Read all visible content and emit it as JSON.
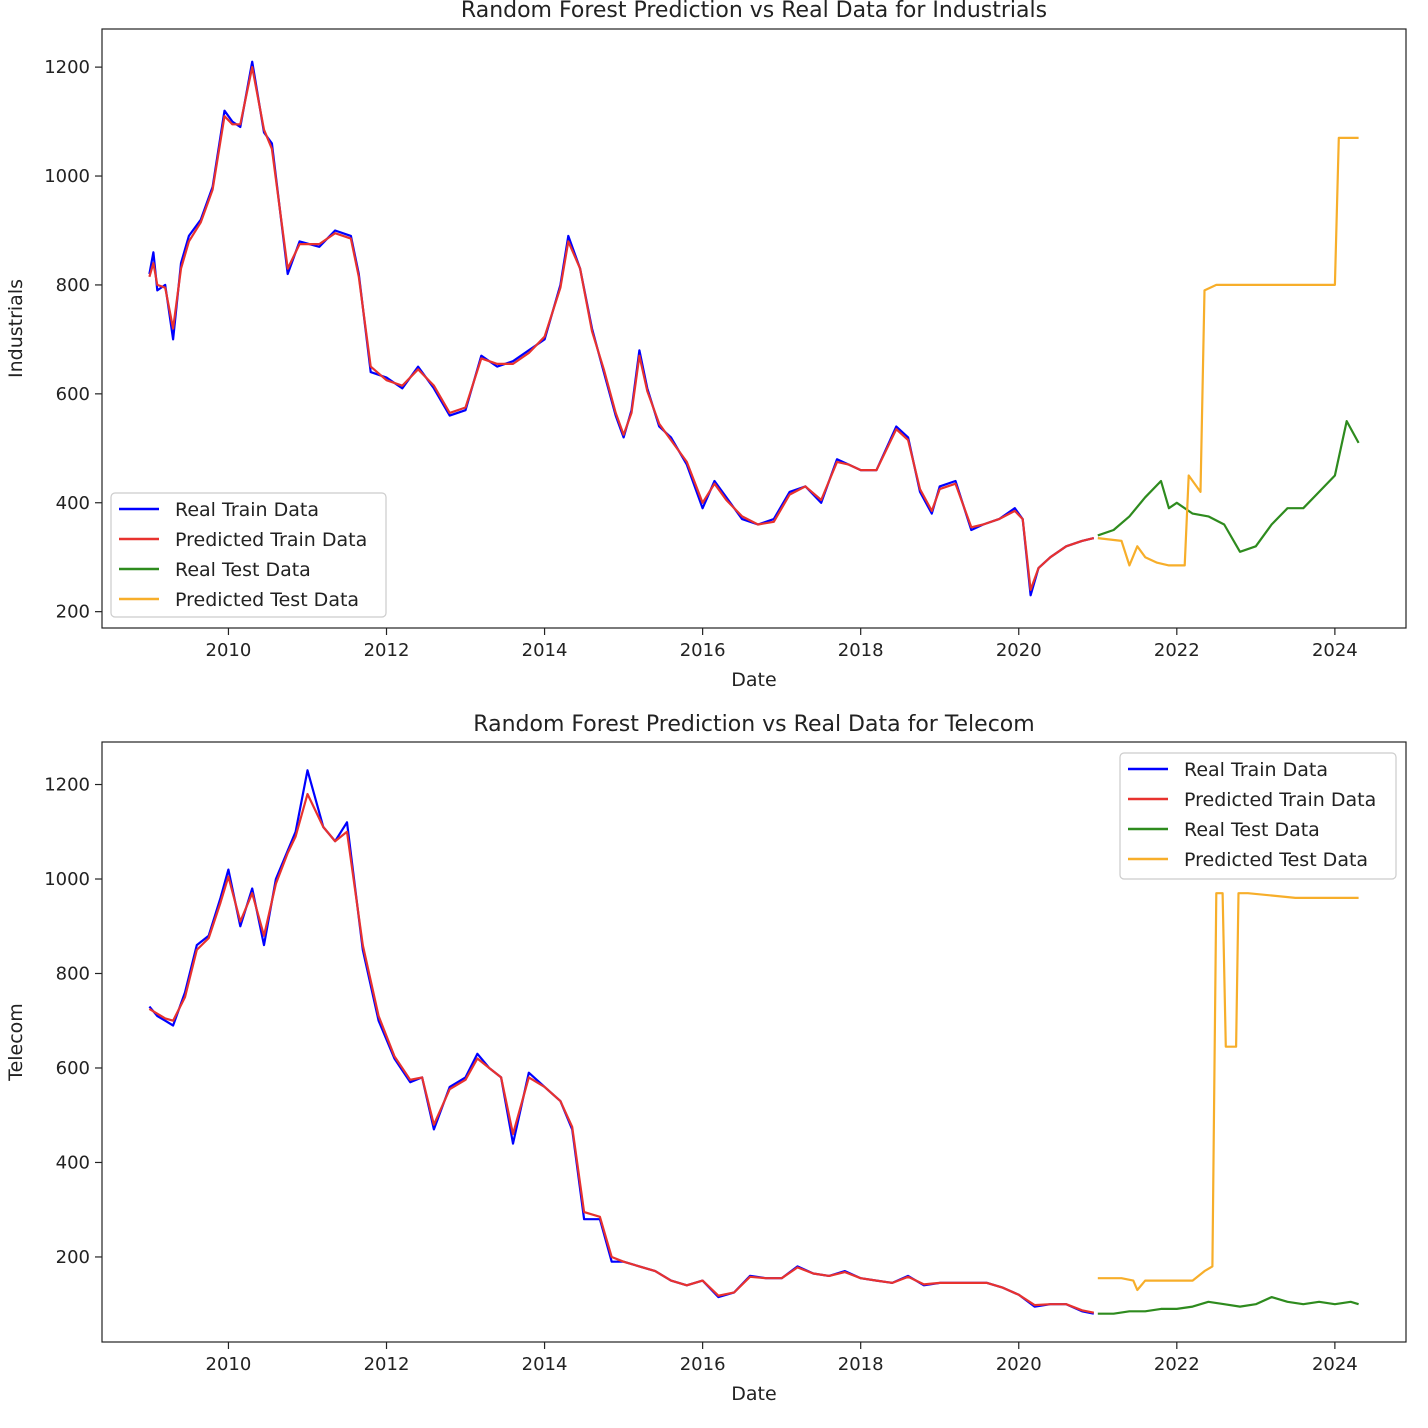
{
  "colors": {
    "real_train": "#0000ff",
    "predicted_train": "#e8322e",
    "real_test": "#2e8b1e",
    "predicted_test": "#f7ae2a",
    "axes": "#222222",
    "background": "#ffffff"
  },
  "chart_data": [
    {
      "type": "line",
      "title": "Random Forest Prediction vs Real Data for Industrials",
      "xlabel": "Date",
      "ylabel": "Industrials",
      "xlim": [
        2008.4,
        2024.9
      ],
      "ylim": [
        170,
        1270
      ],
      "xticks": [
        2010,
        2012,
        2014,
        2016,
        2018,
        2020,
        2022,
        2024
      ],
      "yticks": [
        200,
        400,
        600,
        800,
        1000,
        1200
      ],
      "grid": false,
      "legend": {
        "position": "lower-left",
        "entries": [
          "Real Train Data",
          "Predicted Train Data",
          "Real Test Data",
          "Predicted Test Data"
        ]
      },
      "series": [
        {
          "name": "Real Train Data",
          "color_key": "real_train",
          "x": [
            2009.0,
            2009.05,
            2009.1,
            2009.2,
            2009.3,
            2009.4,
            2009.5,
            2009.65,
            2009.8,
            2009.95,
            2010.05,
            2010.15,
            2010.3,
            2010.45,
            2010.55,
            2010.75,
            2010.9,
            2011.15,
            2011.35,
            2011.55,
            2011.65,
            2011.8,
            2012.0,
            2012.2,
            2012.4,
            2012.6,
            2012.8,
            2013.0,
            2013.2,
            2013.4,
            2013.6,
            2013.8,
            2014.0,
            2014.2,
            2014.3,
            2014.45,
            2014.6,
            2014.75,
            2014.9,
            2015.0,
            2015.1,
            2015.2,
            2015.3,
            2015.45,
            2015.6,
            2015.8,
            2016.0,
            2016.15,
            2016.3,
            2016.5,
            2016.7,
            2016.9,
            2017.1,
            2017.3,
            2017.5,
            2017.7,
            2017.85,
            2018.0,
            2018.2,
            2018.45,
            2018.6,
            2018.75,
            2018.9,
            2019.0,
            2019.2,
            2019.4,
            2019.55,
            2019.75,
            2019.95,
            2020.05,
            2020.15,
            2020.25,
            2020.4,
            2020.6,
            2020.8,
            2020.95
          ],
          "y": [
            820,
            860,
            790,
            800,
            700,
            840,
            890,
            920,
            980,
            1120,
            1100,
            1090,
            1210,
            1080,
            1060,
            820,
            880,
            870,
            900,
            890,
            820,
            640,
            630,
            610,
            650,
            610,
            560,
            570,
            670,
            650,
            660,
            680,
            700,
            800,
            890,
            830,
            720,
            640,
            560,
            520,
            570,
            680,
            610,
            540,
            520,
            470,
            390,
            440,
            410,
            370,
            360,
            370,
            420,
            430,
            400,
            480,
            470,
            460,
            460,
            540,
            520,
            420,
            380,
            430,
            440,
            350,
            360,
            370,
            390,
            370,
            230,
            280,
            300,
            320,
            330,
            335
          ]
        },
        {
          "name": "Predicted Train Data",
          "color_key": "predicted_train",
          "x": [
            2009.0,
            2009.05,
            2009.1,
            2009.2,
            2009.3,
            2009.4,
            2009.5,
            2009.65,
            2009.8,
            2009.95,
            2010.05,
            2010.15,
            2010.3,
            2010.45,
            2010.55,
            2010.75,
            2010.9,
            2011.15,
            2011.35,
            2011.55,
            2011.65,
            2011.8,
            2012.0,
            2012.2,
            2012.4,
            2012.6,
            2012.8,
            2013.0,
            2013.2,
            2013.4,
            2013.6,
            2013.8,
            2014.0,
            2014.2,
            2014.3,
            2014.45,
            2014.6,
            2014.75,
            2014.9,
            2015.0,
            2015.1,
            2015.2,
            2015.3,
            2015.45,
            2015.6,
            2015.8,
            2016.0,
            2016.15,
            2016.3,
            2016.5,
            2016.7,
            2016.9,
            2017.1,
            2017.3,
            2017.5,
            2017.7,
            2017.85,
            2018.0,
            2018.2,
            2018.45,
            2018.6,
            2018.75,
            2018.9,
            2019.0,
            2019.2,
            2019.4,
            2019.55,
            2019.75,
            2019.95,
            2020.05,
            2020.15,
            2020.25,
            2020.4,
            2020.6,
            2020.8,
            2020.95
          ],
          "y": [
            815,
            840,
            800,
            795,
            720,
            830,
            880,
            915,
            975,
            1110,
            1095,
            1095,
            1200,
            1085,
            1050,
            830,
            875,
            875,
            895,
            885,
            815,
            650,
            625,
            615,
            645,
            615,
            565,
            575,
            665,
            655,
            655,
            675,
            705,
            795,
            880,
            830,
            715,
            645,
            565,
            525,
            565,
            670,
            605,
            545,
            515,
            475,
            400,
            435,
            405,
            375,
            360,
            365,
            415,
            430,
            405,
            475,
            470,
            460,
            460,
            535,
            515,
            425,
            385,
            425,
            435,
            355,
            360,
            370,
            385,
            370,
            240,
            280,
            300,
            320,
            330,
            335
          ]
        },
        {
          "name": "Real Test Data",
          "color_key": "real_test",
          "x": [
            2021.0,
            2021.2,
            2021.4,
            2021.6,
            2021.8,
            2021.9,
            2022.0,
            2022.2,
            2022.4,
            2022.6,
            2022.8,
            2023.0,
            2023.2,
            2023.4,
            2023.6,
            2023.8,
            2024.0,
            2024.15,
            2024.3
          ],
          "y": [
            340,
            350,
            375,
            410,
            440,
            390,
            400,
            380,
            375,
            360,
            310,
            320,
            360,
            390,
            390,
            420,
            450,
            550,
            510
          ]
        },
        {
          "name": "Predicted Test Data",
          "color_key": "predicted_test",
          "x": [
            2021.0,
            2021.3,
            2021.4,
            2021.5,
            2021.6,
            2021.75,
            2021.9,
            2022.1,
            2022.15,
            2022.3,
            2022.35,
            2022.5,
            2022.8,
            2023.0,
            2023.5,
            2024.0,
            2024.05,
            2024.3
          ],
          "y": [
            335,
            330,
            285,
            320,
            300,
            290,
            285,
            285,
            450,
            420,
            790,
            800,
            800,
            800,
            800,
            800,
            1070,
            1070
          ]
        }
      ]
    },
    {
      "type": "line",
      "title": "Random Forest Prediction vs Real Data for Telecom",
      "xlabel": "Date",
      "ylabel": "Telecom",
      "xlim": [
        2008.4,
        2024.9
      ],
      "ylim": [
        20,
        1290
      ],
      "xticks": [
        2010,
        2012,
        2014,
        2016,
        2018,
        2020,
        2022,
        2024
      ],
      "yticks": [
        200,
        400,
        600,
        800,
        1000,
        1200
      ],
      "grid": false,
      "legend": {
        "position": "upper-right",
        "entries": [
          "Real Train Data",
          "Predicted Train Data",
          "Real Test Data",
          "Predicted Test Data"
        ]
      },
      "series": [
        {
          "name": "Real Train Data",
          "color_key": "real_train",
          "x": [
            2009.0,
            2009.1,
            2009.2,
            2009.3,
            2009.45,
            2009.6,
            2009.75,
            2009.9,
            2010.0,
            2010.15,
            2010.3,
            2010.45,
            2010.6,
            2010.75,
            2010.85,
            2011.0,
            2011.2,
            2011.35,
            2011.5,
            2011.7,
            2011.9,
            2012.1,
            2012.3,
            2012.45,
            2012.6,
            2012.8,
            2013.0,
            2013.15,
            2013.3,
            2013.45,
            2013.6,
            2013.8,
            2014.0,
            2014.2,
            2014.35,
            2014.5,
            2014.7,
            2014.85,
            2015.0,
            2015.2,
            2015.4,
            2015.6,
            2015.8,
            2016.0,
            2016.2,
            2016.4,
            2016.6,
            2016.8,
            2017.0,
            2017.2,
            2017.4,
            2017.6,
            2017.8,
            2018.0,
            2018.2,
            2018.4,
            2018.6,
            2018.8,
            2019.0,
            2019.2,
            2019.4,
            2019.6,
            2019.8,
            2020.0,
            2020.2,
            2020.4,
            2020.6,
            2020.8,
            2020.95
          ],
          "y": [
            730,
            710,
            700,
            690,
            760,
            860,
            880,
            960,
            1020,
            900,
            980,
            860,
            1000,
            1060,
            1100,
            1230,
            1110,
            1080,
            1120,
            850,
            700,
            620,
            570,
            580,
            470,
            560,
            580,
            630,
            600,
            580,
            440,
            590,
            560,
            530,
            470,
            280,
            280,
            190,
            190,
            180,
            170,
            150,
            140,
            150,
            115,
            125,
            160,
            155,
            155,
            180,
            165,
            160,
            170,
            155,
            150,
            145,
            160,
            140,
            145,
            145,
            145,
            145,
            135,
            120,
            95,
            100,
            100,
            85,
            80
          ]
        },
        {
          "name": "Predicted Train Data",
          "color_key": "predicted_train",
          "x": [
            2009.0,
            2009.1,
            2009.2,
            2009.3,
            2009.45,
            2009.6,
            2009.75,
            2009.9,
            2010.0,
            2010.15,
            2010.3,
            2010.45,
            2010.6,
            2010.75,
            2010.85,
            2011.0,
            2011.2,
            2011.35,
            2011.5,
            2011.7,
            2011.9,
            2012.1,
            2012.3,
            2012.45,
            2012.6,
            2012.8,
            2013.0,
            2013.15,
            2013.3,
            2013.45,
            2013.6,
            2013.8,
            2014.0,
            2014.2,
            2014.35,
            2014.5,
            2014.7,
            2014.85,
            2015.0,
            2015.2,
            2015.4,
            2015.6,
            2015.8,
            2016.0,
            2016.2,
            2016.4,
            2016.6,
            2016.8,
            2017.0,
            2017.2,
            2017.4,
            2017.6,
            2017.8,
            2018.0,
            2018.2,
            2018.4,
            2018.6,
            2018.8,
            2019.0,
            2019.2,
            2019.4,
            2019.6,
            2019.8,
            2020.0,
            2020.2,
            2020.4,
            2020.6,
            2020.8,
            2020.95
          ],
          "y": [
            725,
            715,
            705,
            700,
            750,
            850,
            875,
            950,
            1005,
            910,
            970,
            880,
            990,
            1055,
            1090,
            1180,
            1110,
            1080,
            1100,
            860,
            710,
            625,
            575,
            580,
            480,
            555,
            575,
            620,
            600,
            580,
            460,
            580,
            560,
            530,
            475,
            295,
            285,
            200,
            190,
            180,
            170,
            150,
            140,
            150,
            118,
            125,
            158,
            155,
            155,
            178,
            165,
            160,
            168,
            155,
            150,
            145,
            158,
            142,
            145,
            145,
            145,
            145,
            135,
            120,
            98,
            100,
            100,
            87,
            82
          ]
        },
        {
          "name": "Real Test Data",
          "color_key": "real_test",
          "x": [
            2021.0,
            2021.2,
            2021.4,
            2021.6,
            2021.8,
            2022.0,
            2022.2,
            2022.4,
            2022.6,
            2022.8,
            2023.0,
            2023.2,
            2023.4,
            2023.6,
            2023.8,
            2024.0,
            2024.2,
            2024.3
          ],
          "y": [
            80,
            80,
            85,
            85,
            90,
            90,
            95,
            105,
            100,
            95,
            100,
            115,
            105,
            100,
            105,
            100,
            105,
            100
          ]
        },
        {
          "name": "Predicted Test Data",
          "color_key": "predicted_test",
          "x": [
            2021.0,
            2021.3,
            2021.45,
            2021.5,
            2021.6,
            2021.8,
            2022.0,
            2022.2,
            2022.35,
            2022.45,
            2022.5,
            2022.58,
            2022.62,
            2022.75,
            2022.78,
            2022.9,
            2023.2,
            2023.5,
            2023.8,
            2024.3
          ],
          "y": [
            155,
            155,
            150,
            130,
            150,
            150,
            150,
            150,
            170,
            180,
            970,
            970,
            645,
            645,
            970,
            970,
            965,
            960,
            960,
            960
          ]
        }
      ]
    }
  ]
}
